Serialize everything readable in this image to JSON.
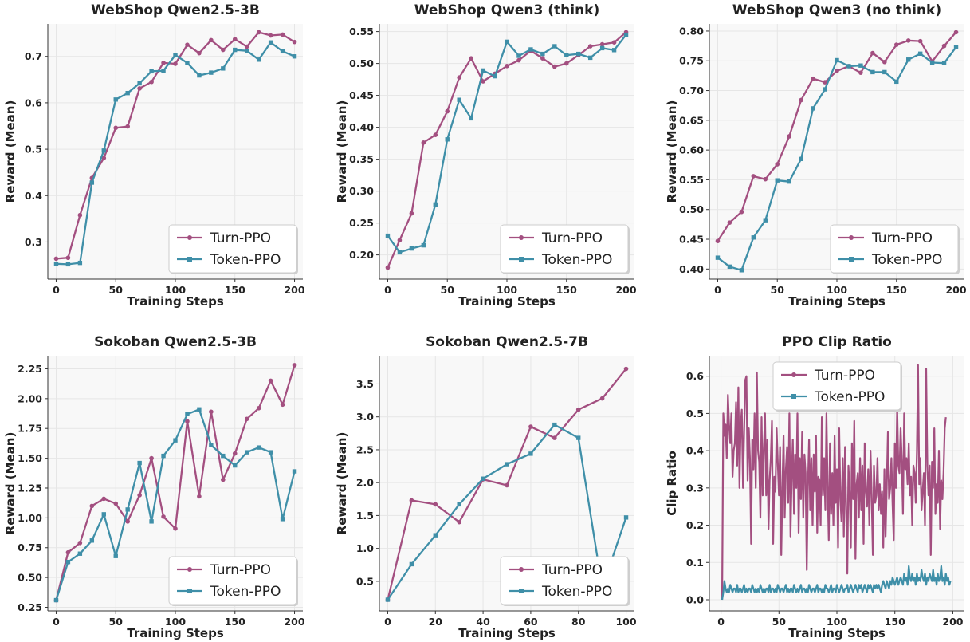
{
  "colors": {
    "turn": "#a34f80",
    "token": "#3f8fa8",
    "panel_bg": "#f8f8f8",
    "grid": "#e6e6e6"
  },
  "legend_labels": [
    "Turn-PPO",
    "Token-PPO"
  ],
  "chart_data": [
    {
      "type": "line",
      "title": "WebShop Qwen2.5-3B",
      "xlabel": "Training Steps",
      "ylabel": "Reward (Mean)",
      "xlim": [
        -7,
        207
      ],
      "ylim": [
        0.22,
        0.77
      ],
      "xticks": [
        0,
        50,
        100,
        150,
        200
      ],
      "yticks": [
        0.3,
        0.4,
        0.5,
        0.6,
        0.7
      ],
      "ytick_labels": [
        "0.3",
        "0.4",
        "0.5",
        "0.6",
        "0.7"
      ],
      "legend_position": "lower-right",
      "series": [
        {
          "name": "Turn-PPO",
          "x": [
            0,
            10,
            20,
            30,
            40,
            50,
            60,
            70,
            80,
            90,
            100,
            110,
            120,
            130,
            140,
            150,
            160,
            170,
            180,
            190,
            200
          ],
          "values": [
            0.264,
            0.266,
            0.358,
            0.438,
            0.481,
            0.546,
            0.549,
            0.631,
            0.645,
            0.686,
            0.684,
            0.725,
            0.707,
            0.735,
            0.714,
            0.737,
            0.721,
            0.752,
            0.745,
            0.747,
            0.731
          ]
        },
        {
          "name": "Token-PPO",
          "x": [
            0,
            10,
            20,
            30,
            40,
            50,
            60,
            70,
            80,
            90,
            100,
            110,
            120,
            130,
            140,
            150,
            160,
            170,
            180,
            190,
            200
          ],
          "values": [
            0.253,
            0.252,
            0.255,
            0.428,
            0.497,
            0.607,
            0.621,
            0.642,
            0.668,
            0.669,
            0.703,
            0.686,
            0.659,
            0.665,
            0.674,
            0.714,
            0.712,
            0.693,
            0.73,
            0.711,
            0.7
          ]
        }
      ]
    },
    {
      "type": "line",
      "title": "WebShop Qwen3 (think)",
      "xlabel": "Training Steps",
      "ylabel": "Reward (Mean)",
      "xlim": [
        -7,
        207
      ],
      "ylim": [
        0.162,
        0.562
      ],
      "xticks": [
        0,
        50,
        100,
        150,
        200
      ],
      "yticks": [
        0.2,
        0.25,
        0.3,
        0.35,
        0.4,
        0.45,
        0.5,
        0.55
      ],
      "ytick_labels": [
        "0.20",
        "0.25",
        "0.30",
        "0.35",
        "0.40",
        "0.45",
        "0.50",
        "0.55"
      ],
      "legend_position": "lower-right",
      "series": [
        {
          "name": "Turn-PPO",
          "x": [
            0,
            10,
            20,
            30,
            40,
            50,
            60,
            70,
            80,
            90,
            100,
            110,
            120,
            130,
            140,
            150,
            160,
            170,
            180,
            190,
            200
          ],
          "values": [
            0.18,
            0.223,
            0.265,
            0.376,
            0.388,
            0.425,
            0.478,
            0.508,
            0.472,
            0.484,
            0.496,
            0.505,
            0.52,
            0.508,
            0.495,
            0.5,
            0.513,
            0.527,
            0.53,
            0.533,
            0.549
          ]
        },
        {
          "name": "Token-PPO",
          "x": [
            0,
            10,
            20,
            30,
            40,
            50,
            60,
            70,
            80,
            90,
            100,
            110,
            120,
            130,
            140,
            150,
            160,
            170,
            180,
            190,
            200
          ],
          "values": [
            0.23,
            0.204,
            0.21,
            0.215,
            0.279,
            0.381,
            0.443,
            0.414,
            0.489,
            0.48,
            0.534,
            0.512,
            0.522,
            0.515,
            0.527,
            0.513,
            0.515,
            0.509,
            0.524,
            0.521,
            0.545
          ]
        }
      ]
    },
    {
      "type": "line",
      "title": "WebShop Qwen3 (no think)",
      "xlabel": "Training Steps",
      "ylabel": "Reward (Mean)",
      "xlim": [
        -7,
        207
      ],
      "ylim": [
        0.383,
        0.812
      ],
      "xticks": [
        0,
        50,
        100,
        150,
        200
      ],
      "yticks": [
        0.4,
        0.45,
        0.5,
        0.55,
        0.6,
        0.65,
        0.7,
        0.75,
        0.8
      ],
      "ytick_labels": [
        "0.40",
        "0.45",
        "0.50",
        "0.55",
        "0.60",
        "0.65",
        "0.70",
        "0.75",
        "0.80"
      ],
      "legend_position": "lower-right",
      "series": [
        {
          "name": "Turn-PPO",
          "x": [
            0,
            10,
            20,
            30,
            40,
            50,
            60,
            70,
            80,
            90,
            100,
            110,
            120,
            130,
            140,
            150,
            160,
            170,
            180,
            190,
            200
          ],
          "values": [
            0.447,
            0.478,
            0.496,
            0.556,
            0.551,
            0.576,
            0.623,
            0.684,
            0.72,
            0.714,
            0.733,
            0.741,
            0.73,
            0.763,
            0.748,
            0.777,
            0.784,
            0.783,
            0.749,
            0.775,
            0.798
          ]
        },
        {
          "name": "Token-PPO",
          "x": [
            0,
            10,
            20,
            30,
            40,
            50,
            60,
            70,
            80,
            90,
            100,
            110,
            120,
            130,
            140,
            150,
            160,
            170,
            180,
            190,
            200
          ],
          "values": [
            0.419,
            0.404,
            0.398,
            0.453,
            0.482,
            0.549,
            0.547,
            0.585,
            0.67,
            0.702,
            0.751,
            0.741,
            0.742,
            0.731,
            0.731,
            0.715,
            0.752,
            0.762,
            0.747,
            0.746,
            0.773
          ]
        }
      ]
    },
    {
      "type": "line",
      "title": "Sokoban Qwen2.5-3B",
      "xlabel": "Training Steps",
      "ylabel": "Reward (Mean)",
      "xlim": [
        -7,
        207
      ],
      "ylim": [
        0.22,
        2.36
      ],
      "xticks": [
        0,
        50,
        100,
        150,
        200
      ],
      "yticks": [
        0.25,
        0.5,
        0.75,
        1.0,
        1.25,
        1.5,
        1.75,
        2.0,
        2.25
      ],
      "ytick_labels": [
        "0.25",
        "0.50",
        "0.75",
        "1.00",
        "1.25",
        "1.50",
        "1.75",
        "2.00",
        "2.25"
      ],
      "legend_position": "lower-right",
      "series": [
        {
          "name": "Turn-PPO",
          "x": [
            0,
            10,
            20,
            30,
            40,
            50,
            60,
            70,
            80,
            90,
            100,
            110,
            120,
            130,
            140,
            150,
            160,
            170,
            180,
            190,
            200
          ],
          "values": [
            0.31,
            0.71,
            0.79,
            1.1,
            1.16,
            1.12,
            0.97,
            1.19,
            1.5,
            1.01,
            0.91,
            1.81,
            1.18,
            1.89,
            1.32,
            1.54,
            1.83,
            1.92,
            2.15,
            1.95,
            2.28
          ]
        },
        {
          "name": "Token-PPO",
          "x": [
            0,
            10,
            20,
            30,
            40,
            50,
            60,
            70,
            80,
            90,
            100,
            110,
            120,
            130,
            140,
            150,
            160,
            170,
            180,
            190,
            200
          ],
          "values": [
            0.31,
            0.63,
            0.7,
            0.81,
            1.03,
            0.68,
            1.07,
            1.46,
            0.97,
            1.52,
            1.65,
            1.87,
            1.91,
            1.61,
            1.52,
            1.44,
            1.55,
            1.59,
            1.55,
            0.99,
            1.39
          ]
        }
      ]
    },
    {
      "type": "line",
      "title": "Sokoban Qwen2.5-7B",
      "xlabel": "Training Steps",
      "ylabel": "Reward (Mean)",
      "xlim": [
        -3.5,
        103.5
      ],
      "ylim": [
        0.05,
        3.93
      ],
      "xticks": [
        0,
        20,
        40,
        60,
        80,
        100
      ],
      "yticks": [
        0.5,
        1.0,
        1.5,
        2.0,
        2.5,
        3.0,
        3.5
      ],
      "ytick_labels": [
        "0.5",
        "1.0",
        "1.5",
        "2.0",
        "2.5",
        "3.0",
        "3.5"
      ],
      "legend_position": "lower-right",
      "series": [
        {
          "name": "Turn-PPO",
          "x": [
            0,
            10,
            20,
            30,
            40,
            50,
            60,
            70,
            80,
            90,
            100
          ],
          "values": [
            0.22,
            1.73,
            1.67,
            1.4,
            2.05,
            1.96,
            2.85,
            2.68,
            3.11,
            3.28,
            3.73
          ]
        },
        {
          "name": "Token-PPO",
          "x": [
            0,
            10,
            20,
            30,
            40,
            50,
            60,
            70,
            80,
            90,
            100
          ],
          "values": [
            0.22,
            0.76,
            1.2,
            1.67,
            2.06,
            2.28,
            2.44,
            2.88,
            2.68,
            0.4,
            1.47
          ]
        }
      ]
    },
    {
      "type": "line",
      "title": "PPO Clip Ratio",
      "xlabel": "Training Steps",
      "ylabel": "Clip Ratio",
      "xlim": [
        -10,
        210
      ],
      "ylim": [
        -0.03,
        0.655
      ],
      "xticks": [
        0,
        50,
        100,
        150,
        200
      ],
      "yticks": [
        0.0,
        0.1,
        0.2,
        0.3,
        0.4,
        0.5,
        0.6
      ],
      "ytick_labels": [
        "0.0",
        "0.1",
        "0.2",
        "0.3",
        "0.4",
        "0.5",
        "0.6"
      ],
      "legend_position": "upper-left",
      "series": [
        {
          "name": "Turn-PPO",
          "x_start": 1,
          "x_step": 1,
          "values": [
            0.0,
            0.5,
            0.44,
            0.47,
            0.38,
            0.55,
            0.47,
            0.42,
            0.5,
            0.33,
            0.4,
            0.42,
            0.53,
            0.36,
            0.57,
            0.3,
            0.47,
            0.51,
            0.3,
            0.45,
            0.59,
            0.6,
            0.32,
            0.46,
            0.38,
            0.15,
            0.43,
            0.35,
            0.5,
            0.3,
            0.61,
            0.4,
            0.37,
            0.22,
            0.49,
            0.28,
            0.41,
            0.5,
            0.28,
            0.43,
            0.19,
            0.32,
            0.38,
            0.48,
            0.15,
            0.33,
            0.29,
            0.46,
            0.37,
            0.28,
            0.41,
            0.12,
            0.3,
            0.44,
            0.22,
            0.35,
            0.41,
            0.26,
            0.5,
            0.17,
            0.33,
            0.43,
            0.23,
            0.39,
            0.3,
            0.5,
            0.18,
            0.38,
            0.27,
            0.45,
            0.22,
            0.39,
            0.34,
            0.08,
            0.3,
            0.43,
            0.24,
            0.38,
            0.2,
            0.39,
            0.29,
            0.44,
            0.18,
            0.33,
            0.32,
            0.2,
            0.49,
            0.28,
            0.38,
            0.24,
            0.5,
            0.3,
            0.16,
            0.42,
            0.23,
            0.34,
            0.2,
            0.44,
            0.26,
            0.35,
            0.14,
            0.46,
            0.27,
            0.21,
            0.38,
            0.17,
            0.41,
            0.25,
            0.07,
            0.36,
            0.29,
            0.14,
            0.42,
            0.27,
            0.48,
            0.11,
            0.31,
            0.34,
            0.22,
            0.38,
            0.24,
            0.36,
            0.15,
            0.42,
            0.29,
            0.25,
            0.35,
            0.2,
            0.4,
            0.28,
            0.12,
            0.36,
            0.26,
            0.28,
            0.38,
            0.24,
            0.31,
            0.23,
            0.29,
            0.14,
            0.35,
            0.17,
            0.3,
            0.45,
            0.27,
            0.3,
            0.38,
            0.26,
            0.16,
            0.42,
            0.3,
            0.52,
            0.36,
            0.34,
            0.46,
            0.37,
            0.23,
            0.5,
            0.35,
            0.38,
            0.31,
            0.42,
            0.28,
            0.33,
            0.2,
            0.36,
            0.34,
            0.26,
            0.4,
            0.63,
            0.31,
            0.38,
            0.24,
            0.29,
            0.34,
            0.2,
            0.62,
            0.36,
            0.28,
            0.36,
            0.12,
            0.37,
            0.3,
            0.46,
            0.23,
            0.31,
            0.26,
            0.4,
            0.19,
            0.32,
            0.27,
            0.34,
            0.46,
            0.49
          ]
        },
        {
          "name": "Token-PPO",
          "x_start": 1,
          "x_step": 1,
          "values": [
            0.0,
            0.02,
            0.05,
            0.03,
            0.02,
            0.03,
            0.02,
            0.04,
            0.03,
            0.02,
            0.03,
            0.03,
            0.02,
            0.04,
            0.02,
            0.03,
            0.03,
            0.02,
            0.03,
            0.04,
            0.02,
            0.03,
            0.02,
            0.03,
            0.03,
            0.02,
            0.04,
            0.03,
            0.02,
            0.03,
            0.02,
            0.03,
            0.02,
            0.04,
            0.03,
            0.02,
            0.03,
            0.02,
            0.03,
            0.03,
            0.02,
            0.04,
            0.02,
            0.03,
            0.03,
            0.02,
            0.03,
            0.02,
            0.04,
            0.03,
            0.02,
            0.03,
            0.03,
            0.02,
            0.03,
            0.04,
            0.02,
            0.03,
            0.02,
            0.03,
            0.03,
            0.02,
            0.04,
            0.03,
            0.02,
            0.03,
            0.02,
            0.03,
            0.04,
            0.02,
            0.03,
            0.03,
            0.02,
            0.03,
            0.02,
            0.04,
            0.03,
            0.02,
            0.03,
            0.03,
            0.02,
            0.03,
            0.04,
            0.02,
            0.03,
            0.03,
            0.02,
            0.03,
            0.02,
            0.04,
            0.03,
            0.03,
            0.02,
            0.03,
            0.04,
            0.02,
            0.03,
            0.03,
            0.02,
            0.04,
            0.03,
            0.02,
            0.03,
            0.04,
            0.03,
            0.02,
            0.03,
            0.03,
            0.04,
            0.02,
            0.03,
            0.04,
            0.03,
            0.02,
            0.03,
            0.04,
            0.03,
            0.02,
            0.04,
            0.03,
            0.04,
            0.02,
            0.03,
            0.04,
            0.03,
            0.02,
            0.04,
            0.03,
            0.04,
            0.03,
            0.02,
            0.04,
            0.03,
            0.04,
            0.03,
            0.04,
            0.03,
            0.02,
            0.04,
            0.05,
            0.04,
            0.03,
            0.05,
            0.04,
            0.03,
            0.05,
            0.04,
            0.06,
            0.05,
            0.04,
            0.05,
            0.06,
            0.04,
            0.05,
            0.06,
            0.05,
            0.04,
            0.07,
            0.05,
            0.06,
            0.04,
            0.09,
            0.06,
            0.05,
            0.07,
            0.05,
            0.06,
            0.04,
            0.07,
            0.05,
            0.06,
            0.05,
            0.08,
            0.06,
            0.05,
            0.07,
            0.04,
            0.06,
            0.05,
            0.07,
            0.06,
            0.05,
            0.08,
            0.05,
            0.06,
            0.04,
            0.07,
            0.05,
            0.06,
            0.09,
            0.05,
            0.06,
            0.04,
            0.07,
            0.05,
            0.06,
            0.04,
            0.05
          ]
        }
      ]
    }
  ]
}
